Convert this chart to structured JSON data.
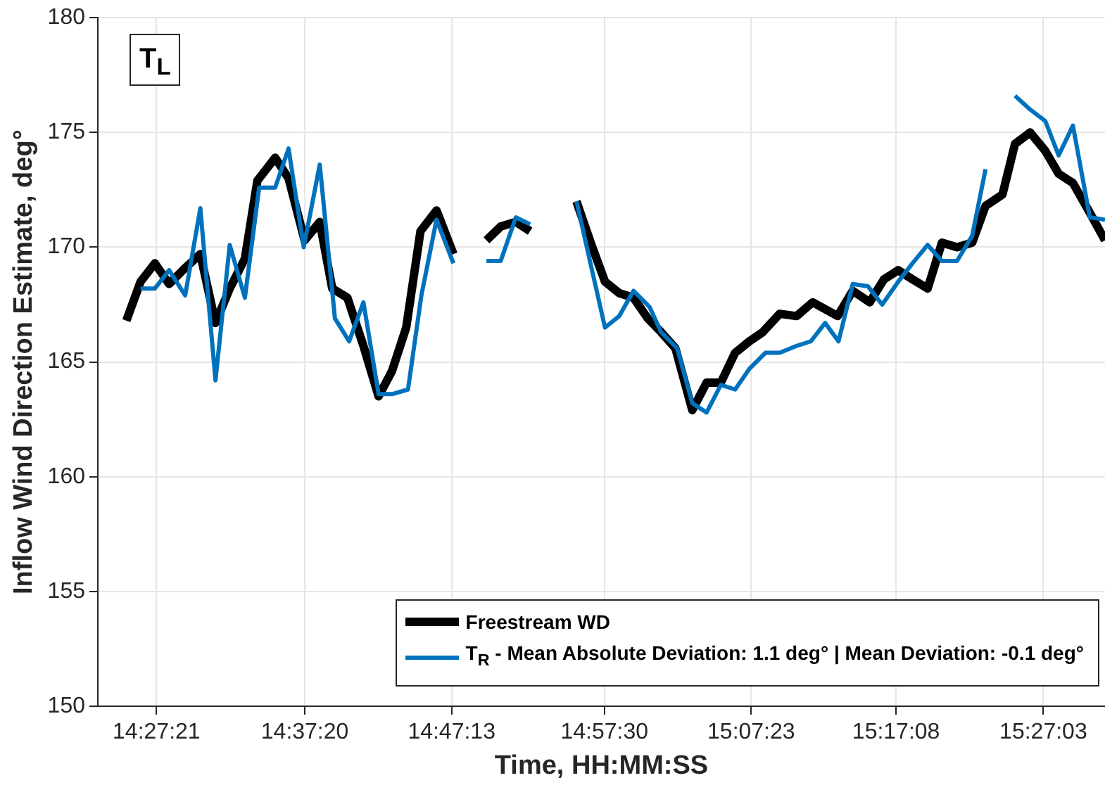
{
  "chart_data": {
    "type": "line",
    "xlabel": "Time, HH:MM:SS",
    "ylabel": "Inflow Wind Direction Estimate, deg°",
    "annotations": [
      "T$_{L}$"
    ],
    "xlim": [
      14.39,
      15.52
    ],
    "xticks": [
      {
        "value": 14.45583,
        "label": "14:27:21"
      },
      {
        "value": 14.62222,
        "label": "14:37:20"
      },
      {
        "value": 14.78694,
        "label": "14:47:13"
      },
      {
        "value": 14.95833,
        "label": "14:57:30"
      },
      {
        "value": 15.12306,
        "label": "15:07:23"
      },
      {
        "value": 15.28556,
        "label": "15:17:08"
      },
      {
        "value": 15.45083,
        "label": "15:27:03"
      }
    ],
    "ylim": [
      150,
      180
    ],
    "yticks": [
      150,
      155,
      160,
      165,
      170,
      175,
      180
    ],
    "grid": true,
    "legend": "bottom right",
    "marker": "none",
    "line_style": "solid",
    "series": [
      {
        "name": "Freestream WD",
        "color": "#000000",
        "x": [
          14.422,
          14.438,
          14.454,
          14.47,
          14.488,
          14.505,
          14.522,
          14.538,
          14.555,
          14.569,
          14.589,
          14.604,
          14.622,
          14.639,
          14.653,
          14.67,
          14.688,
          14.705,
          14.72,
          14.736,
          14.752,
          14.77,
          14.789,
          14.807,
          14.826,
          14.842,
          14.859,
          14.875,
          14.9,
          14.927,
          14.943,
          14.959,
          14.975,
          14.991,
          15.007,
          15.022,
          15.038,
          15.057,
          15.073,
          15.089,
          15.105,
          15.121,
          15.136,
          15.155,
          15.174,
          15.192,
          15.22,
          15.237,
          15.256,
          15.272,
          15.288,
          15.304,
          15.321,
          15.337,
          15.354,
          15.371,
          15.386,
          15.405,
          15.419,
          15.436,
          15.453,
          15.468,
          15.484,
          15.503,
          15.52
        ],
        "values": [
          166.8,
          168.5,
          169.3,
          168.4,
          169.1,
          169.7,
          166.7,
          168.2,
          169.5,
          172.9,
          173.9,
          173.0,
          170.3,
          171.1,
          168.2,
          167.8,
          165.7,
          163.5,
          164.6,
          166.5,
          170.7,
          171.6,
          169.7,
          null,
          170.3,
          170.9,
          171.1,
          170.7,
          null,
          172.0,
          170.2,
          168.5,
          168.0,
          167.8,
          166.9,
          166.3,
          165.6,
          162.9,
          164.1,
          164.1,
          165.4,
          165.9,
          166.3,
          167.1,
          167.0,
          167.6,
          167.0,
          168.1,
          167.6,
          168.6,
          169.0,
          168.6,
          168.2,
          170.2,
          170.0,
          170.2,
          171.8,
          172.3,
          174.5,
          175.0,
          174.2,
          173.2,
          172.8,
          171.5,
          170.3
        ]
      },
      {
        "name": "T$_{R}$ - Mean Absolute Deviation: 1.1 deg° | Mean Deviation: -0.1 deg°",
        "color": "#0072bd",
        "x": [
          14.438,
          14.454,
          14.47,
          14.488,
          14.505,
          14.522,
          14.538,
          14.555,
          14.571,
          14.589,
          14.604,
          14.621,
          14.639,
          14.656,
          14.672,
          14.688,
          14.705,
          14.72,
          14.738,
          14.753,
          14.77,
          14.789,
          14.807,
          14.826,
          14.842,
          14.859,
          14.875,
          14.9,
          14.927,
          14.959,
          14.975,
          14.991,
          15.009,
          15.022,
          15.04,
          15.057,
          15.073,
          15.089,
          15.105,
          15.121,
          15.139,
          15.155,
          15.174,
          15.19,
          15.206,
          15.221,
          15.237,
          15.254,
          15.27,
          15.288,
          15.304,
          15.321,
          15.337,
          15.354,
          15.371,
          15.386,
          15.403,
          15.419,
          15.436,
          15.453,
          15.468,
          15.484,
          15.503,
          15.52
        ],
        "values": [
          168.2,
          168.2,
          169.0,
          167.9,
          171.7,
          164.2,
          170.1,
          167.8,
          172.6,
          172.6,
          174.3,
          170.0,
          173.6,
          166.9,
          165.9,
          167.6,
          163.6,
          163.6,
          163.8,
          167.9,
          171.2,
          169.3,
          null,
          169.4,
          169.4,
          171.3,
          171.0,
          null,
          172.0,
          166.5,
          167.0,
          168.1,
          167.4,
          166.3,
          165.6,
          163.2,
          162.8,
          164.0,
          163.8,
          164.7,
          165.4,
          165.4,
          165.7,
          165.9,
          166.7,
          165.9,
          168.4,
          168.3,
          167.5,
          168.5,
          169.3,
          170.1,
          169.4,
          169.4,
          170.5,
          173.4,
          null,
          176.6,
          176.0,
          175.5,
          174.0,
          175.3,
          171.3,
          171.2
        ]
      }
    ]
  }
}
